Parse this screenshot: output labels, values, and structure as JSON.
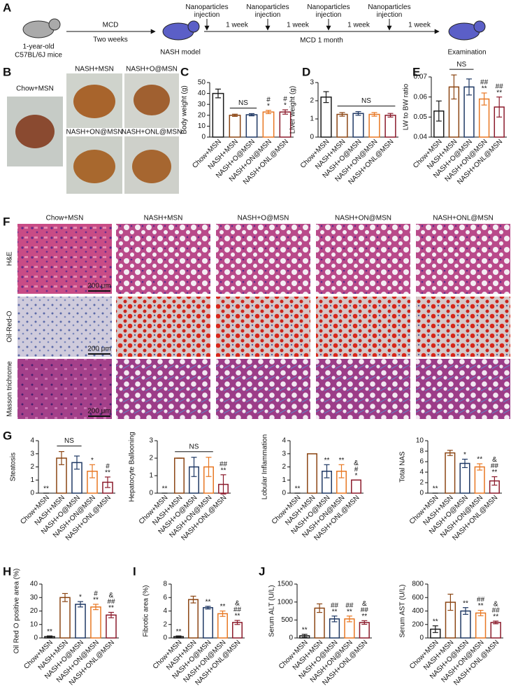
{
  "panel_labels": [
    "A",
    "B",
    "C",
    "D",
    "E",
    "F",
    "G",
    "H",
    "I",
    "J"
  ],
  "timeline": {
    "start_mouse": [
      "1-year-old",
      "C57BL/6J mice"
    ],
    "step1_top": "MCD",
    "step1_bottom": "Two weeks",
    "model": "NASH model",
    "injections": [
      "Nanoparticles injection",
      "Nanoparticles injection",
      "Nanoparticles injection",
      "Nanoparticles injection"
    ],
    "intervals": [
      "1 week",
      "1 week",
      "1 week",
      "1 week"
    ],
    "period": "MCD 1 month",
    "end": "Examination"
  },
  "photos": {
    "labels": [
      "Chow+MSN",
      "NASH+MSN",
      "NASH+O@MSN",
      "NASH+ON@MSN",
      "NASH+ONL@MSN"
    ]
  },
  "histology": {
    "columns": [
      "Chow+MSN",
      "NASH+MSN",
      "NASH+O@MSN",
      "NASH+ON@MSN",
      "NASH+ONL@MSN"
    ],
    "rows": [
      "H&E",
      "Oil-Red-O",
      "Masson trichrome"
    ],
    "scale_bar": "200 μm"
  },
  "chart_data": [
    {
      "type": "bar",
      "ylabel": "Body weight (g)",
      "categories": [
        "Chow+MSN",
        "NASH+MSN",
        "NASH+O@MSN",
        "NASH+ON@MSN",
        "NASH+ONL@MSN"
      ],
      "values": [
        40,
        20,
        20.5,
        23,
        23
      ],
      "errors": [
        4,
        1,
        1,
        1.5,
        2
      ],
      "colors": [
        "#1a1a1a",
        "#8b4513",
        "#1f3864",
        "#e87722",
        "#8b1a2b"
      ],
      "ylim": [
        0,
        50
      ],
      "yticks": [
        0,
        10,
        20,
        30,
        40,
        50
      ],
      "significance": [
        [],
        [],
        [],
        [
          "#",
          "*"
        ],
        [
          "#",
          "*"
        ]
      ],
      "ns_label": "NS",
      "ns": [
        false,
        true,
        true,
        false,
        false
      ]
    },
    {
      "type": "bar",
      "ylabel": "Liver weight (g)",
      "categories": [
        "Chow+MSN",
        "NASH+MSN",
        "NASH+O@MSN",
        "NASH+ON@MSN",
        "NASH+ONL@MSN"
      ],
      "values": [
        2.2,
        1.25,
        1.3,
        1.25,
        1.2
      ],
      "errors": [
        0.3,
        0.1,
        0.1,
        0.1,
        0.1
      ],
      "colors": [
        "#1a1a1a",
        "#8b4513",
        "#1f3864",
        "#e87722",
        "#8b1a2b"
      ],
      "ylim": [
        0,
        3
      ],
      "yticks": [
        0,
        1,
        2,
        3
      ],
      "significance": [
        [],
        [],
        [],
        [],
        []
      ],
      "ns_label": "NS",
      "ns": [
        false,
        true,
        true,
        true,
        true
      ]
    },
    {
      "type": "bar",
      "ylabel": "LW to BW ratio",
      "categories": [
        "Chow+MSN",
        "NASH+MSN",
        "NASH+O@MSN",
        "NASH+ON@MSN",
        "NASH+ONL@MSN"
      ],
      "values": [
        0.053,
        0.065,
        0.065,
        0.059,
        0.055
      ],
      "errors": [
        0.005,
        0.006,
        0.004,
        0.003,
        0.005
      ],
      "colors": [
        "#1a1a1a",
        "#8b4513",
        "#1f3864",
        "#e87722",
        "#8b1a2b"
      ],
      "ylim": [
        0.04,
        0.07
      ],
      "yticks": [
        0.04,
        0.05,
        0.06,
        0.07
      ],
      "significance": [
        [],
        [],
        [],
        [
          "##",
          "**"
        ],
        [
          "##",
          "**"
        ]
      ],
      "ns_label": "NS",
      "ns": [
        false,
        true,
        true,
        false,
        false
      ]
    },
    {
      "type": "bar",
      "ylabel": "Steatosis",
      "categories": [
        "Chow+MSN",
        "NASH+MSN",
        "NASH+O@MSN",
        "NASH+ON@MSN",
        "NASH+ONL@MSN"
      ],
      "values": [
        0,
        2.67,
        2.33,
        1.67,
        0.83
      ],
      "errors": [
        0,
        0.5,
        0.5,
        0.5,
        0.4
      ],
      "colors": [
        "#1a1a1a",
        "#8b4513",
        "#1f3864",
        "#e87722",
        "#8b1a2b"
      ],
      "ylim": [
        0,
        4
      ],
      "yticks": [
        0,
        1,
        2,
        3,
        4
      ],
      "significance": [
        [
          "**"
        ],
        [],
        [],
        [
          "*"
        ],
        [
          "#",
          "**"
        ]
      ],
      "ns_label": "NS",
      "ns": [
        false,
        true,
        true,
        false,
        false
      ]
    },
    {
      "type": "bar",
      "ylabel": "Hepatocyte Ballooning",
      "categories": [
        "Chow+MSN",
        "NASH+MSN",
        "NASH+O@MSN",
        "NASH+ON@MSN",
        "NASH+ONL@MSN"
      ],
      "values": [
        0,
        2,
        1.5,
        1.5,
        0.5
      ],
      "errors": [
        0,
        0,
        0.55,
        0.55,
        0.55
      ],
      "colors": [
        "#1a1a1a",
        "#8b4513",
        "#1f3864",
        "#e87722",
        "#8b1a2b"
      ],
      "ylim": [
        0,
        3
      ],
      "yticks": [
        0,
        1,
        2,
        3
      ],
      "significance": [
        [
          "**"
        ],
        [],
        [],
        [],
        [
          "##",
          "**"
        ]
      ],
      "ns_label": "NS",
      "ns": [
        false,
        true,
        true,
        true,
        false
      ]
    },
    {
      "type": "bar",
      "ylabel": "Lobular Inflammation",
      "categories": [
        "Chow+MSN",
        "NASH+MSN",
        "NASH+O@MSN",
        "NASH+ON@MSN",
        "NASH+ONL@MSN"
      ],
      "values": [
        0,
        3,
        1.67,
        1.67,
        1
      ],
      "errors": [
        0,
        0,
        0.5,
        0.5,
        0
      ],
      "colors": [
        "#1a1a1a",
        "#8b4513",
        "#1f3864",
        "#e87722",
        "#8b1a2b"
      ],
      "ylim": [
        0,
        4
      ],
      "yticks": [
        0,
        1,
        2,
        3,
        4
      ],
      "significance": [
        [
          "**"
        ],
        [],
        [
          "**"
        ],
        [
          "**"
        ],
        [
          "&",
          "#",
          "*"
        ]
      ]
    },
    {
      "type": "bar",
      "ylabel": "Total NAS",
      "categories": [
        "Chow+MSN",
        "NASH+MSN",
        "NASH+O@MSN",
        "NASH+ON@MSN",
        "NASH+ONL@MSN"
      ],
      "values": [
        0,
        7.67,
        5.67,
        5,
        2.33
      ],
      "errors": [
        0,
        0.5,
        0.8,
        0.6,
        0.8
      ],
      "colors": [
        "#1a1a1a",
        "#8b4513",
        "#1f3864",
        "#e87722",
        "#8b1a2b"
      ],
      "ylim": [
        0,
        10
      ],
      "yticks": [
        0,
        2,
        4,
        6,
        8,
        10
      ],
      "significance": [
        [
          "**"
        ],
        [],
        [
          "*"
        ],
        [
          "**"
        ],
        [
          "&",
          "##",
          "**"
        ]
      ]
    },
    {
      "type": "bar",
      "ylabel": "Oil Red O positive area (%)",
      "categories": [
        "Chow+MSN",
        "NASH+MSN",
        "NASH+O@MSN",
        "NASH+ON@MSN",
        "NASH+ONL@MSN"
      ],
      "values": [
        1,
        30,
        25,
        23,
        17
      ],
      "errors": [
        0.5,
        3,
        2,
        2,
        2
      ],
      "colors": [
        "#1a1a1a",
        "#8b4513",
        "#1f3864",
        "#e87722",
        "#8b1a2b"
      ],
      "ylim": [
        0,
        40
      ],
      "yticks": [
        0,
        10,
        20,
        30,
        40
      ],
      "significance": [
        [
          "**"
        ],
        [],
        [
          "*"
        ],
        [
          "#",
          "**"
        ],
        [
          "&",
          "##",
          "**"
        ]
      ]
    },
    {
      "type": "bar",
      "ylabel": "Fibrotic area (%)",
      "categories": [
        "Chow+MSN",
        "NASH+MSN",
        "NASH+O@MSN",
        "NASH+ON@MSN",
        "NASH+ONL@MSN"
      ],
      "values": [
        0.2,
        5.7,
        4.5,
        3.6,
        2.3
      ],
      "errors": [
        0.1,
        0.5,
        0.2,
        0.4,
        0.3
      ],
      "colors": [
        "#1a1a1a",
        "#8b4513",
        "#1f3864",
        "#e87722",
        "#8b1a2b"
      ],
      "ylim": [
        0,
        8
      ],
      "yticks": [
        0,
        2,
        4,
        6,
        8
      ],
      "significance": [
        [
          "**"
        ],
        [],
        [
          "**"
        ],
        [
          "**"
        ],
        [
          "&",
          "##",
          "**"
        ]
      ]
    },
    {
      "type": "bar",
      "ylabel": "Serum ALT (U/L)",
      "categories": [
        "Chow+MSN",
        "NASH+MSN",
        "NASH+O@MSN",
        "NASH+ON@MSN",
        "NASH+ONL@MSN"
      ],
      "values": [
        60,
        830,
        530,
        530,
        430
      ],
      "errors": [
        40,
        120,
        80,
        80,
        50
      ],
      "colors": [
        "#1a1a1a",
        "#8b4513",
        "#1f3864",
        "#e87722",
        "#8b1a2b"
      ],
      "ylim": [
        0,
        1500
      ],
      "yticks": [
        0,
        500,
        1000,
        1500
      ],
      "significance": [
        [
          "**"
        ],
        [],
        [
          "##",
          "**"
        ],
        [
          "##",
          "**"
        ],
        [
          "&",
          "##",
          "**"
        ]
      ]
    },
    {
      "type": "bar",
      "ylabel": "Serum AST (U/L)",
      "categories": [
        "Chow+MSN",
        "NASH+MSN",
        "NASH+O@MSN",
        "NASH+ON@MSN",
        "NASH+ONL@MSN"
      ],
      "values": [
        130,
        530,
        400,
        370,
        230
      ],
      "errors": [
        50,
        120,
        50,
        40,
        20
      ],
      "colors": [
        "#1a1a1a",
        "#8b4513",
        "#1f3864",
        "#e87722",
        "#8b1a2b"
      ],
      "ylim": [
        0,
        800
      ],
      "yticks": [
        0,
        200,
        400,
        600,
        800
      ],
      "significance": [
        [
          "**"
        ],
        [],
        [
          "**"
        ],
        [
          "##",
          "**"
        ],
        [
          "&",
          "##",
          "**"
        ]
      ]
    }
  ]
}
